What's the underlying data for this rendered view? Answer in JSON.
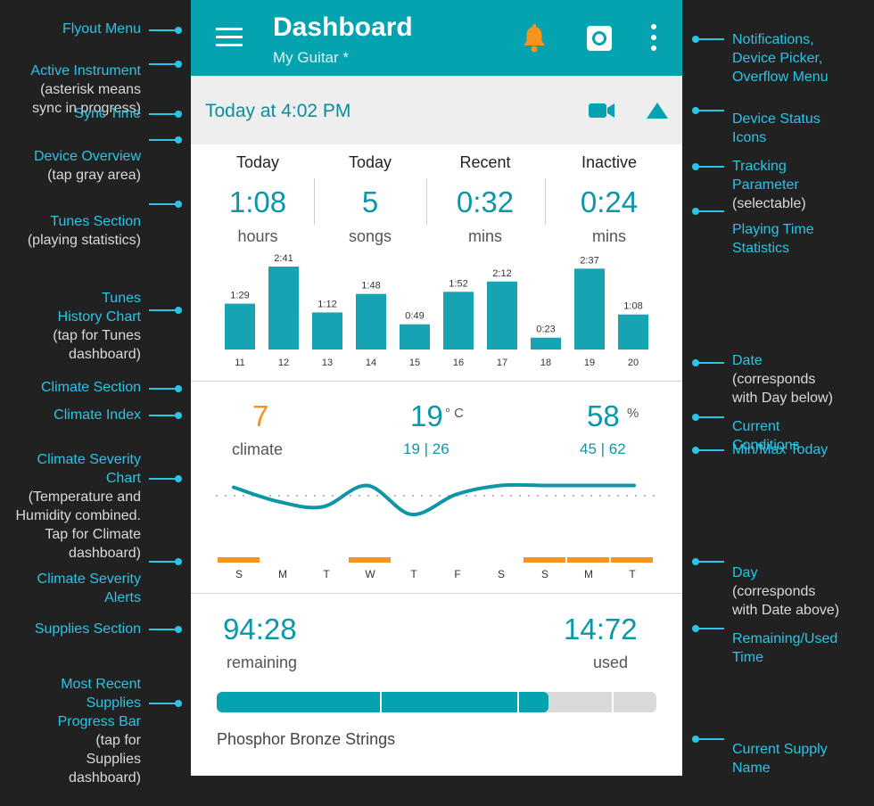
{
  "annotations": {
    "left": [
      {
        "title": "Flyout Menu",
        "sub": ""
      },
      {
        "title": "Active Instrument",
        "sub": "(asterisk means\nsync in progress)"
      },
      {
        "title": "Sync Time",
        "sub": ""
      },
      {
        "title": "Device Overview",
        "sub": "(tap gray area)"
      },
      {
        "title": "Tunes Section",
        "sub": "(playing statistics)"
      },
      {
        "title": "Tunes\nHistory Chart",
        "sub": "(tap for Tunes\ndashboard)"
      },
      {
        "title": "Climate Section",
        "sub": ""
      },
      {
        "title": "Climate Index",
        "sub": ""
      },
      {
        "title": "Climate Severity\nChart",
        "sub": "(Temperature and\nHumidity combined.\nTap for Climate\ndashboard)"
      },
      {
        "title": "Climate Severity\nAlerts",
        "sub": ""
      },
      {
        "title": "Supplies Section",
        "sub": ""
      },
      {
        "title": "Most Recent\nSupplies\nProgress Bar",
        "sub": "(tap for\nSupplies\ndashboard)"
      }
    ],
    "right": [
      {
        "title": "Notifications,\nDevice Picker,\nOverflow Menu",
        "sub": ""
      },
      {
        "title": "Device Status\nIcons",
        "sub": ""
      },
      {
        "title": "Tracking\nParameter",
        "sub": "(selectable)"
      },
      {
        "title": "Playing Time\nStatistics",
        "sub": ""
      },
      {
        "title": "Date",
        "sub": "(corresponds\nwith Day below)"
      },
      {
        "title": "Current\nConditions",
        "sub": ""
      },
      {
        "title": "Min/Max Today",
        "sub": ""
      },
      {
        "title": "Day",
        "sub": "(corresponds\nwith Date above)"
      },
      {
        "title": "Remaining/Used\nTime",
        "sub": ""
      },
      {
        "title": "Current Supply\nName",
        "sub": ""
      }
    ]
  },
  "app": {
    "title": "Dashboard",
    "instrument": "My Guitar  *",
    "icons": [
      "menu-icon",
      "bell-icon",
      "device-picker-icon",
      "overflow-icon",
      "video-icon",
      "triangle-status-icon"
    ],
    "accent": "#05a3b0",
    "bell_color": "#f7941d"
  },
  "overview": {
    "sync_time": "Today at 4:02 PM"
  },
  "tunes": {
    "stats": [
      {
        "head": "Today",
        "value": "1:08",
        "unit": "hours"
      },
      {
        "head": "Today",
        "value": "5",
        "unit": "songs"
      },
      {
        "head": "Recent",
        "value": "0:32",
        "unit": "mins"
      },
      {
        "head": "Inactive",
        "value": "0:24",
        "unit": "mins"
      }
    ]
  },
  "chart_data": {
    "type": "bar",
    "categories": [
      "11",
      "12",
      "13",
      "14",
      "15",
      "16",
      "17",
      "18",
      "19",
      "20"
    ],
    "values": [
      89,
      161,
      72,
      108,
      49,
      112,
      132,
      23,
      157,
      68
    ],
    "labels": [
      "1:29",
      "2:41",
      "1:12",
      "1:48",
      "0:49",
      "1:52",
      "2:12",
      "0:23",
      "2:37",
      "1:08"
    ],
    "color": "#16a4b2"
  },
  "climate": {
    "index": "7",
    "index_label": "climate",
    "temperature": "19",
    "temperature_unit": "° C",
    "temperature_minmax": "19 | 26",
    "humidity": "58",
    "humidity_unit": "%",
    "humidity_minmax": "45 | 62",
    "index_color": "#f7941d",
    "days": [
      "S",
      "M",
      "T",
      "W",
      "T",
      "F",
      "S",
      "S",
      "M",
      "T"
    ],
    "alerts": [
      true,
      false,
      false,
      true,
      false,
      false,
      false,
      true,
      true,
      true
    ],
    "alert_color": "#f7941d",
    "severity_curve": [
      0.05,
      0.37,
      0.49,
      0.01,
      0.66,
      0.21,
      0.01,
      0.01,
      0.01,
      0.01
    ]
  },
  "supplies": {
    "remaining": "94:28",
    "remaining_label": "remaining",
    "used": "14:72",
    "used_label": "used",
    "progress_fraction": 0.755,
    "name": "Phosphor Bronze Strings"
  }
}
